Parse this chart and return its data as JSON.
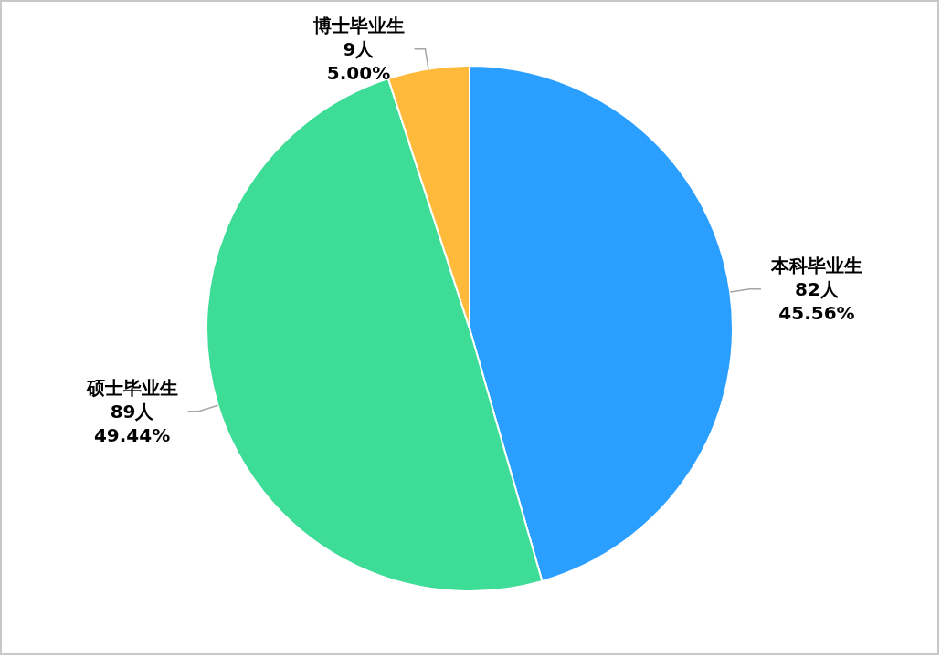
{
  "chart_data": {
    "type": "pie",
    "categories": [
      "本科毕业生",
      "硕士毕业生",
      "博士毕业生"
    ],
    "values": [
      82,
      89,
      9
    ],
    "colors": [
      "#2b9fff",
      "#3ddc97",
      "#ffba3b"
    ],
    "value_labels": [
      "82人\n45.56%",
      "89人\n49.44%",
      "9人\n5.00%"
    ]
  }
}
